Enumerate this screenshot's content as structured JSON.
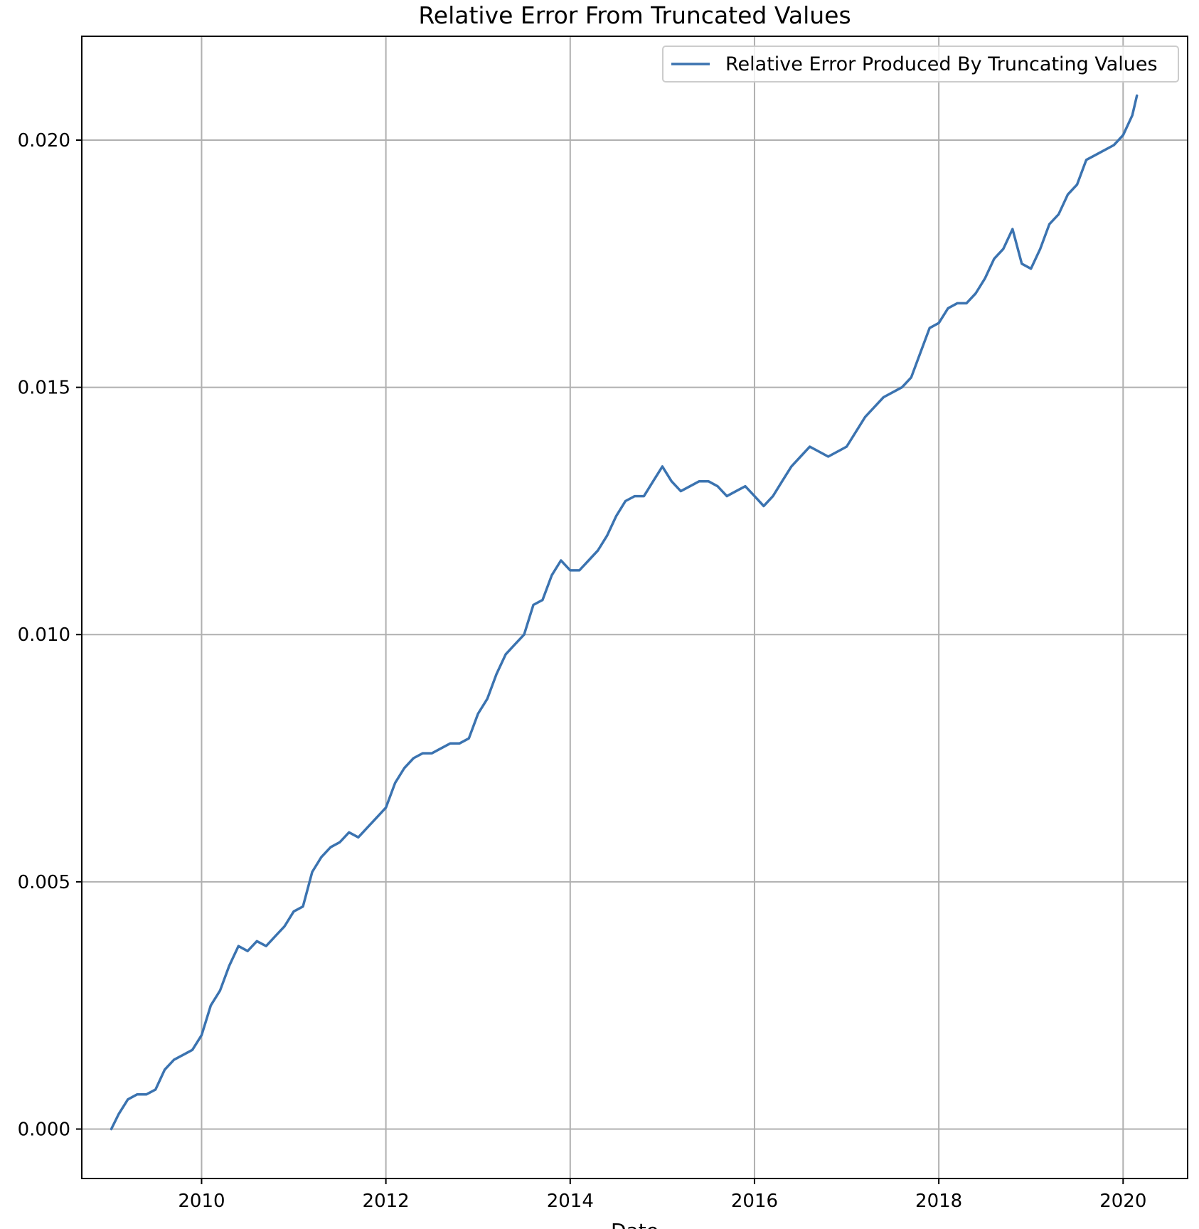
{
  "chart_data": {
    "type": "line",
    "title": "Relative Error From Truncated Values",
    "xlabel": "Date",
    "ylabel": "",
    "xlim": [
      2008.7,
      2020.7
    ],
    "ylim": [
      -0.001,
      0.0221
    ],
    "x_ticks": [
      2010,
      2012,
      2014,
      2016,
      2018,
      2020
    ],
    "x_tick_labels": [
      "2010",
      "2012",
      "2014",
      "2016",
      "2018",
      "2020"
    ],
    "y_ticks": [
      0.0,
      0.005,
      0.01,
      0.015,
      0.02
    ],
    "y_tick_labels": [
      "0.000",
      "0.005",
      "0.010",
      "0.015",
      "0.020"
    ],
    "grid": true,
    "legend": {
      "position": "top-right"
    },
    "series": [
      {
        "name": "Relative Error Produced By Truncating Values",
        "color": "#3b73b0",
        "x": [
          2009.02,
          2009.1,
          2009.2,
          2009.3,
          2009.4,
          2009.5,
          2009.6,
          2009.7,
          2009.8,
          2009.9,
          2010.0,
          2010.1,
          2010.2,
          2010.3,
          2010.4,
          2010.5,
          2010.6,
          2010.7,
          2010.8,
          2010.9,
          2011.0,
          2011.1,
          2011.2,
          2011.3,
          2011.4,
          2011.5,
          2011.6,
          2011.7,
          2011.8,
          2011.9,
          2012.0,
          2012.1,
          2012.2,
          2012.3,
          2012.4,
          2012.5,
          2012.6,
          2012.7,
          2012.8,
          2012.9,
          2013.0,
          2013.1,
          2013.2,
          2013.3,
          2013.4,
          2013.5,
          2013.6,
          2013.7,
          2013.8,
          2013.9,
          2014.0,
          2014.1,
          2014.2,
          2014.3,
          2014.4,
          2014.5,
          2014.6,
          2014.7,
          2014.8,
          2014.9,
          2015.0,
          2015.1,
          2015.2,
          2015.3,
          2015.4,
          2015.5,
          2015.6,
          2015.7,
          2015.8,
          2015.9,
          2016.0,
          2016.1,
          2016.2,
          2016.3,
          2016.4,
          2016.5,
          2016.6,
          2016.7,
          2016.8,
          2016.9,
          2017.0,
          2017.1,
          2017.2,
          2017.3,
          2017.4,
          2017.5,
          2017.6,
          2017.7,
          2017.8,
          2017.9,
          2018.0,
          2018.1,
          2018.2,
          2018.3,
          2018.4,
          2018.5,
          2018.6,
          2018.7,
          2018.8,
          2018.9,
          2019.0,
          2019.1,
          2019.2,
          2019.3,
          2019.4,
          2019.5,
          2019.6,
          2019.7,
          2019.8,
          2019.9,
          2020.0,
          2020.1,
          2020.15
        ],
        "y": [
          0.0,
          0.0003,
          0.0006,
          0.0007,
          0.0007,
          0.0008,
          0.0012,
          0.0014,
          0.0015,
          0.0016,
          0.0019,
          0.0025,
          0.0028,
          0.0033,
          0.0037,
          0.0036,
          0.0038,
          0.0037,
          0.0039,
          0.0041,
          0.0044,
          0.0045,
          0.0052,
          0.0055,
          0.0057,
          0.0058,
          0.006,
          0.0059,
          0.0061,
          0.0063,
          0.0065,
          0.007,
          0.0073,
          0.0075,
          0.0076,
          0.0076,
          0.0077,
          0.0078,
          0.0078,
          0.0079,
          0.0084,
          0.0087,
          0.0092,
          0.0096,
          0.0098,
          0.01,
          0.0106,
          0.0107,
          0.0112,
          0.0115,
          0.0113,
          0.0113,
          0.0115,
          0.0117,
          0.012,
          0.0124,
          0.0127,
          0.0128,
          0.0128,
          0.0131,
          0.0134,
          0.0131,
          0.0129,
          0.013,
          0.0131,
          0.0131,
          0.013,
          0.0128,
          0.0129,
          0.013,
          0.0128,
          0.0126,
          0.0128,
          0.0131,
          0.0134,
          0.0136,
          0.0138,
          0.0137,
          0.0136,
          0.0137,
          0.0138,
          0.0141,
          0.0144,
          0.0146,
          0.0148,
          0.0149,
          0.015,
          0.0152,
          0.0157,
          0.0162,
          0.0163,
          0.0166,
          0.0167,
          0.0167,
          0.0169,
          0.0172,
          0.0176,
          0.0178,
          0.0182,
          0.0175,
          0.0174,
          0.0178,
          0.0183,
          0.0185,
          0.0189,
          0.0191,
          0.0196,
          0.0197,
          0.0198,
          0.0199,
          0.0201,
          0.0205,
          0.0209
        ]
      }
    ]
  }
}
